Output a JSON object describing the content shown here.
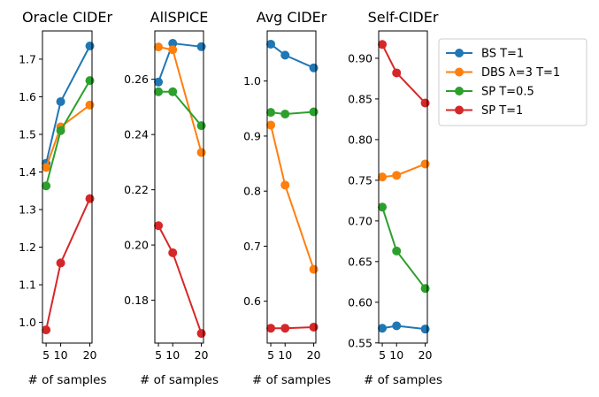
{
  "chart_data": [
    {
      "type": "line",
      "title": "Oracle CIDEr",
      "xlabel": "# of samples",
      "ylabel": "",
      "x": [
        5,
        10,
        20
      ],
      "ylim": [
        0.945,
        1.775
      ],
      "yticks": [
        1.0,
        1.1,
        1.2,
        1.3,
        1.4,
        1.5,
        1.6,
        1.7
      ],
      "yfmt": 1,
      "series": [
        {
          "name": "BS T=1",
          "values": [
            1.423,
            1.587,
            1.735
          ]
        },
        {
          "name": "DBS λ=3 T=1",
          "values": [
            1.412,
            1.52,
            1.578
          ]
        },
        {
          "name": "SP T=0.5",
          "values": [
            1.363,
            1.51,
            1.643
          ]
        },
        {
          "name": "SP T=1",
          "values": [
            0.98,
            1.158,
            1.329
          ]
        }
      ]
    },
    {
      "type": "line",
      "title": "AllSPICE",
      "xlabel": "# of samples",
      "ylabel": "",
      "x": [
        5,
        10,
        20
      ],
      "ylim": [
        0.1645,
        0.2775
      ],
      "yticks": [
        0.18,
        0.2,
        0.22,
        0.24,
        0.26
      ],
      "yfmt": 2,
      "series": [
        {
          "name": "BS T=1",
          "values": [
            0.259,
            0.273,
            0.2718
          ]
        },
        {
          "name": "DBS λ=3 T=1",
          "values": [
            0.2717,
            0.2707,
            0.2335
          ]
        },
        {
          "name": "SP T=0.5",
          "values": [
            0.2555,
            0.2555,
            0.2432
          ]
        },
        {
          "name": "SP T=1",
          "values": [
            0.207,
            0.1972,
            0.168
          ]
        }
      ]
    },
    {
      "type": "line",
      "title": "Avg CIDEr",
      "xlabel": "# of samples",
      "ylabel": "",
      "x": [
        5,
        10,
        20
      ],
      "ylim": [
        0.524,
        1.091
      ],
      "yticks": [
        0.6,
        0.7,
        0.8,
        0.9,
        1.0
      ],
      "yfmt": 1,
      "series": [
        {
          "name": "BS T=1",
          "values": [
            1.067,
            1.047,
            1.024
          ]
        },
        {
          "name": "DBS λ=3 T=1",
          "values": [
            0.92,
            0.811,
            0.658
          ]
        },
        {
          "name": "SP T=0.5",
          "values": [
            0.943,
            0.94,
            0.944
          ]
        },
        {
          "name": "SP T=1",
          "values": [
            0.551,
            0.551,
            0.553
          ]
        }
      ]
    },
    {
      "type": "line",
      "title": "Self-CIDEr",
      "xlabel": "# of samples",
      "ylabel": "",
      "x": [
        5,
        10,
        20
      ],
      "ylim": [
        0.5498,
        0.9336
      ],
      "yticks": [
        0.55,
        0.6,
        0.65,
        0.7,
        0.75,
        0.8,
        0.85,
        0.9
      ],
      "yfmt": 2,
      "series": [
        {
          "name": "BS T=1",
          "values": [
            0.568,
            0.571,
            0.567
          ]
        },
        {
          "name": "DBS λ=3 T=1",
          "values": [
            0.754,
            0.756,
            0.77
          ]
        },
        {
          "name": "SP T=0.5",
          "values": [
            0.717,
            0.663,
            0.617
          ]
        },
        {
          "name": "SP T=1",
          "values": [
            0.917,
            0.882,
            0.845
          ]
        }
      ]
    }
  ],
  "legend": {
    "placement": "right",
    "entries": [
      "BS T=1",
      "DBS λ=3 T=1",
      "SP T=0.5",
      "SP T=1"
    ]
  },
  "colors": [
    "#1f77b4",
    "#ff7f0e",
    "#2ca02c",
    "#d62728"
  ]
}
